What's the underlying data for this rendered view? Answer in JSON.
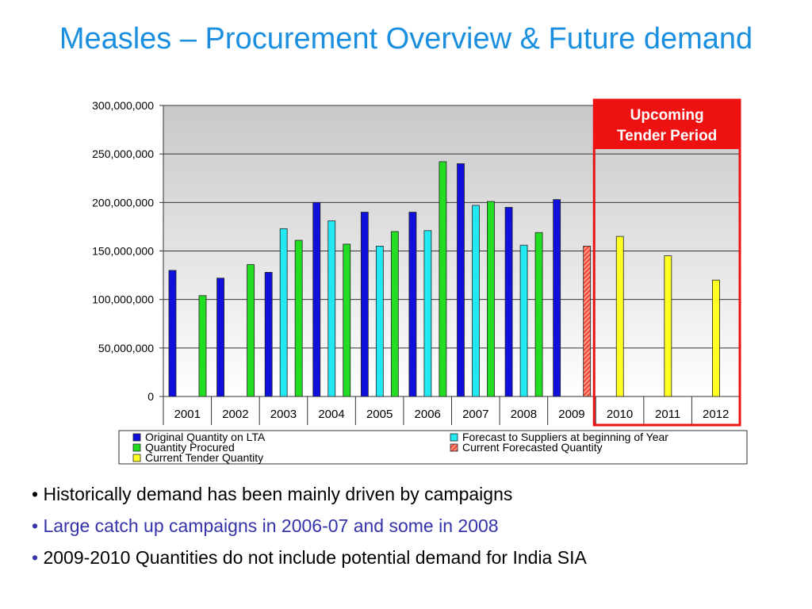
{
  "slide": {
    "title": "Measles – Procurement Overview & Future demand"
  },
  "tender_box": {
    "line1": "Upcoming",
    "line2": "Tender Period",
    "color": "#ee1111"
  },
  "bullets": [
    {
      "marker": "•",
      "text": "Historically demand has been mainly driven by campaigns",
      "color": "#000000"
    },
    {
      "marker": "•",
      "text": "Large catch up campaigns in 2006-07 and some in 2008",
      "color": "#3333aa"
    },
    {
      "marker": "•",
      "text": "2009-2010 Quantities do not include potential demand for India SIA",
      "color": "#000000",
      "marker_color": "#3333aa"
    }
  ],
  "chart_data": {
    "type": "bar",
    "categories": [
      "2001",
      "2002",
      "2003",
      "2004",
      "2005",
      "2006",
      "2007",
      "2008",
      "2009",
      "2010",
      "2011",
      "2012"
    ],
    "ylim": [
      0,
      300000000
    ],
    "yticks": [
      0,
      50000000,
      100000000,
      150000000,
      200000000,
      250000000,
      300000000
    ],
    "ytick_labels": [
      "0",
      "50,000,000",
      "100,000,000",
      "150,000,000",
      "200,000,000",
      "250,000,000",
      "300,000,000"
    ],
    "grid": true,
    "legend_position": "bottom",
    "series": [
      {
        "name": "Original Quantity on LTA",
        "color": "#1010dd",
        "pattern": "solid",
        "values": [
          130000000,
          122000000,
          128000000,
          200000000,
          190000000,
          190000000,
          240000000,
          195000000,
          203000000,
          null,
          null,
          null
        ]
      },
      {
        "name": "Forecast to Suppliers at beginning of Year",
        "color": "#22e8f2",
        "pattern": "solid",
        "values": [
          null,
          null,
          173000000,
          181000000,
          155000000,
          171000000,
          197000000,
          156000000,
          null,
          null,
          null,
          null
        ]
      },
      {
        "name": "Quantity Procured",
        "color": "#22dd22",
        "pattern": "solid",
        "values": [
          104000000,
          136000000,
          161000000,
          157000000,
          170000000,
          242000000,
          201000000,
          169000000,
          null,
          null,
          null,
          null
        ]
      },
      {
        "name": "Current Forecasted Quantity",
        "color": "#ff7766",
        "pattern": "hatched",
        "values": [
          null,
          null,
          null,
          null,
          null,
          null,
          null,
          null,
          155000000,
          null,
          null,
          null
        ]
      },
      {
        "name": "Current Tender Quantity",
        "color": "#ffff22",
        "pattern": "solid",
        "values": [
          null,
          null,
          null,
          null,
          null,
          null,
          null,
          null,
          null,
          165000000,
          145000000,
          120000000
        ]
      }
    ]
  }
}
